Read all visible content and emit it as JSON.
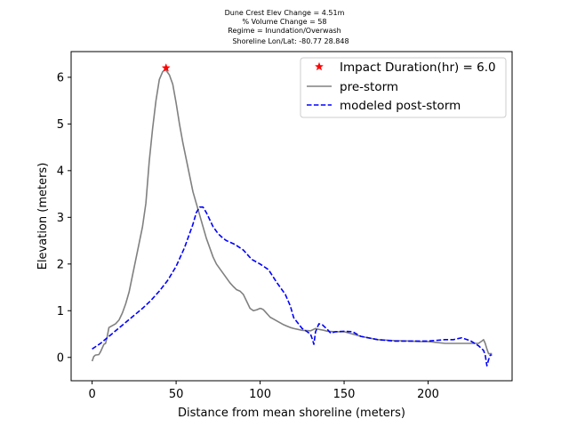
{
  "chart_data": {
    "type": "line",
    "title_lines": [
      "Dune Crest Elev Change = 4.51m",
      "% Volume Change = 58",
      "Regime = Inundation/Overwash",
      "Shoreline Lon/Lat: -80.77 28.848"
    ],
    "xlabel": "Distance from mean shoreline (meters)",
    "ylabel": "Elevation (meters)",
    "xlim": [
      -12.5,
      250
    ],
    "ylim": [
      -0.5,
      6.55
    ],
    "xticks": [
      0,
      50,
      100,
      150,
      200
    ],
    "yticks": [
      0,
      1,
      2,
      3,
      4,
      5,
      6
    ],
    "grid": false,
    "legend_position": "upper right",
    "colors": {
      "pre": "#808080",
      "post": "#0000ff",
      "marker": "#ff0000"
    },
    "marker": {
      "label": "Impact Duration(hr) = 6.0",
      "x": 44,
      "y": 6.2
    },
    "series": [
      {
        "name": "pre-storm",
        "style": "solid",
        "x": [
          0,
          1,
          2,
          4,
          5,
          6,
          7,
          8,
          9,
          10,
          12,
          14,
          16,
          18,
          20,
          22,
          24,
          26,
          28,
          30,
          32,
          34,
          36,
          38,
          40,
          42,
          43,
          44,
          46,
          48,
          50,
          52,
          54,
          56,
          58,
          60,
          62,
          64,
          66,
          68,
          70,
          72,
          74,
          76,
          78,
          80,
          82,
          84,
          86,
          88,
          90,
          92,
          94,
          96,
          98,
          100,
          101,
          102,
          103,
          104,
          105,
          106,
          108,
          110,
          112,
          114,
          116,
          118,
          120,
          125,
          130,
          133,
          135,
          138,
          140,
          145,
          150,
          155,
          160,
          170,
          180,
          190,
          195,
          200,
          205,
          210,
          215,
          220,
          225,
          230,
          232,
          233,
          234,
          235,
          236,
          238
        ],
        "y": [
          -0.08,
          0.02,
          0.05,
          0.06,
          0.12,
          0.2,
          0.28,
          0.3,
          0.45,
          0.64,
          0.68,
          0.72,
          0.8,
          0.95,
          1.15,
          1.4,
          1.75,
          2.1,
          2.45,
          2.8,
          3.3,
          4.2,
          4.9,
          5.5,
          5.95,
          6.12,
          6.15,
          6.15,
          6.05,
          5.85,
          5.45,
          5.0,
          4.6,
          4.25,
          3.9,
          3.55,
          3.3,
          3.05,
          2.8,
          2.55,
          2.35,
          2.15,
          2.0,
          1.9,
          1.8,
          1.7,
          1.6,
          1.52,
          1.45,
          1.42,
          1.35,
          1.2,
          1.05,
          1.0,
          1.02,
          1.05,
          1.04,
          1.02,
          0.98,
          0.94,
          0.9,
          0.86,
          0.82,
          0.78,
          0.74,
          0.7,
          0.67,
          0.64,
          0.62,
          0.58,
          0.57,
          0.62,
          0.6,
          0.58,
          0.56,
          0.55,
          0.55,
          0.5,
          0.45,
          0.38,
          0.36,
          0.35,
          0.34,
          0.34,
          0.32,
          0.3,
          0.3,
          0.3,
          0.3,
          0.3,
          0.35,
          0.38,
          0.3,
          0.18,
          0.08,
          0.08
        ]
      },
      {
        "name": "modeled post-storm",
        "style": "dashed",
        "x": [
          0,
          5,
          10,
          15,
          20,
          25,
          30,
          35,
          40,
          45,
          50,
          55,
          60,
          62,
          64,
          66,
          68,
          70,
          72,
          75,
          78,
          80,
          85,
          90,
          95,
          100,
          105,
          110,
          115,
          118,
          120,
          125,
          128,
          130,
          131,
          132,
          133,
          135,
          137,
          140,
          142,
          145,
          150,
          155,
          160,
          170,
          180,
          190,
          200,
          210,
          215,
          220,
          225,
          230,
          233,
          234,
          235,
          236,
          237,
          238
        ],
        "y": [
          0.18,
          0.3,
          0.45,
          0.6,
          0.75,
          0.9,
          1.05,
          1.22,
          1.42,
          1.65,
          1.95,
          2.35,
          2.85,
          3.1,
          3.22,
          3.22,
          3.1,
          2.95,
          2.8,
          2.65,
          2.55,
          2.5,
          2.42,
          2.3,
          2.1,
          2.0,
          1.88,
          1.6,
          1.35,
          1.1,
          0.85,
          0.62,
          0.55,
          0.5,
          0.4,
          0.28,
          0.55,
          0.72,
          0.7,
          0.6,
          0.52,
          0.55,
          0.56,
          0.55,
          0.45,
          0.38,
          0.35,
          0.35,
          0.35,
          0.38,
          0.38,
          0.42,
          0.36,
          0.25,
          0.15,
          0.05,
          -0.18,
          -0.05,
          0.05,
          0.05
        ]
      }
    ]
  }
}
